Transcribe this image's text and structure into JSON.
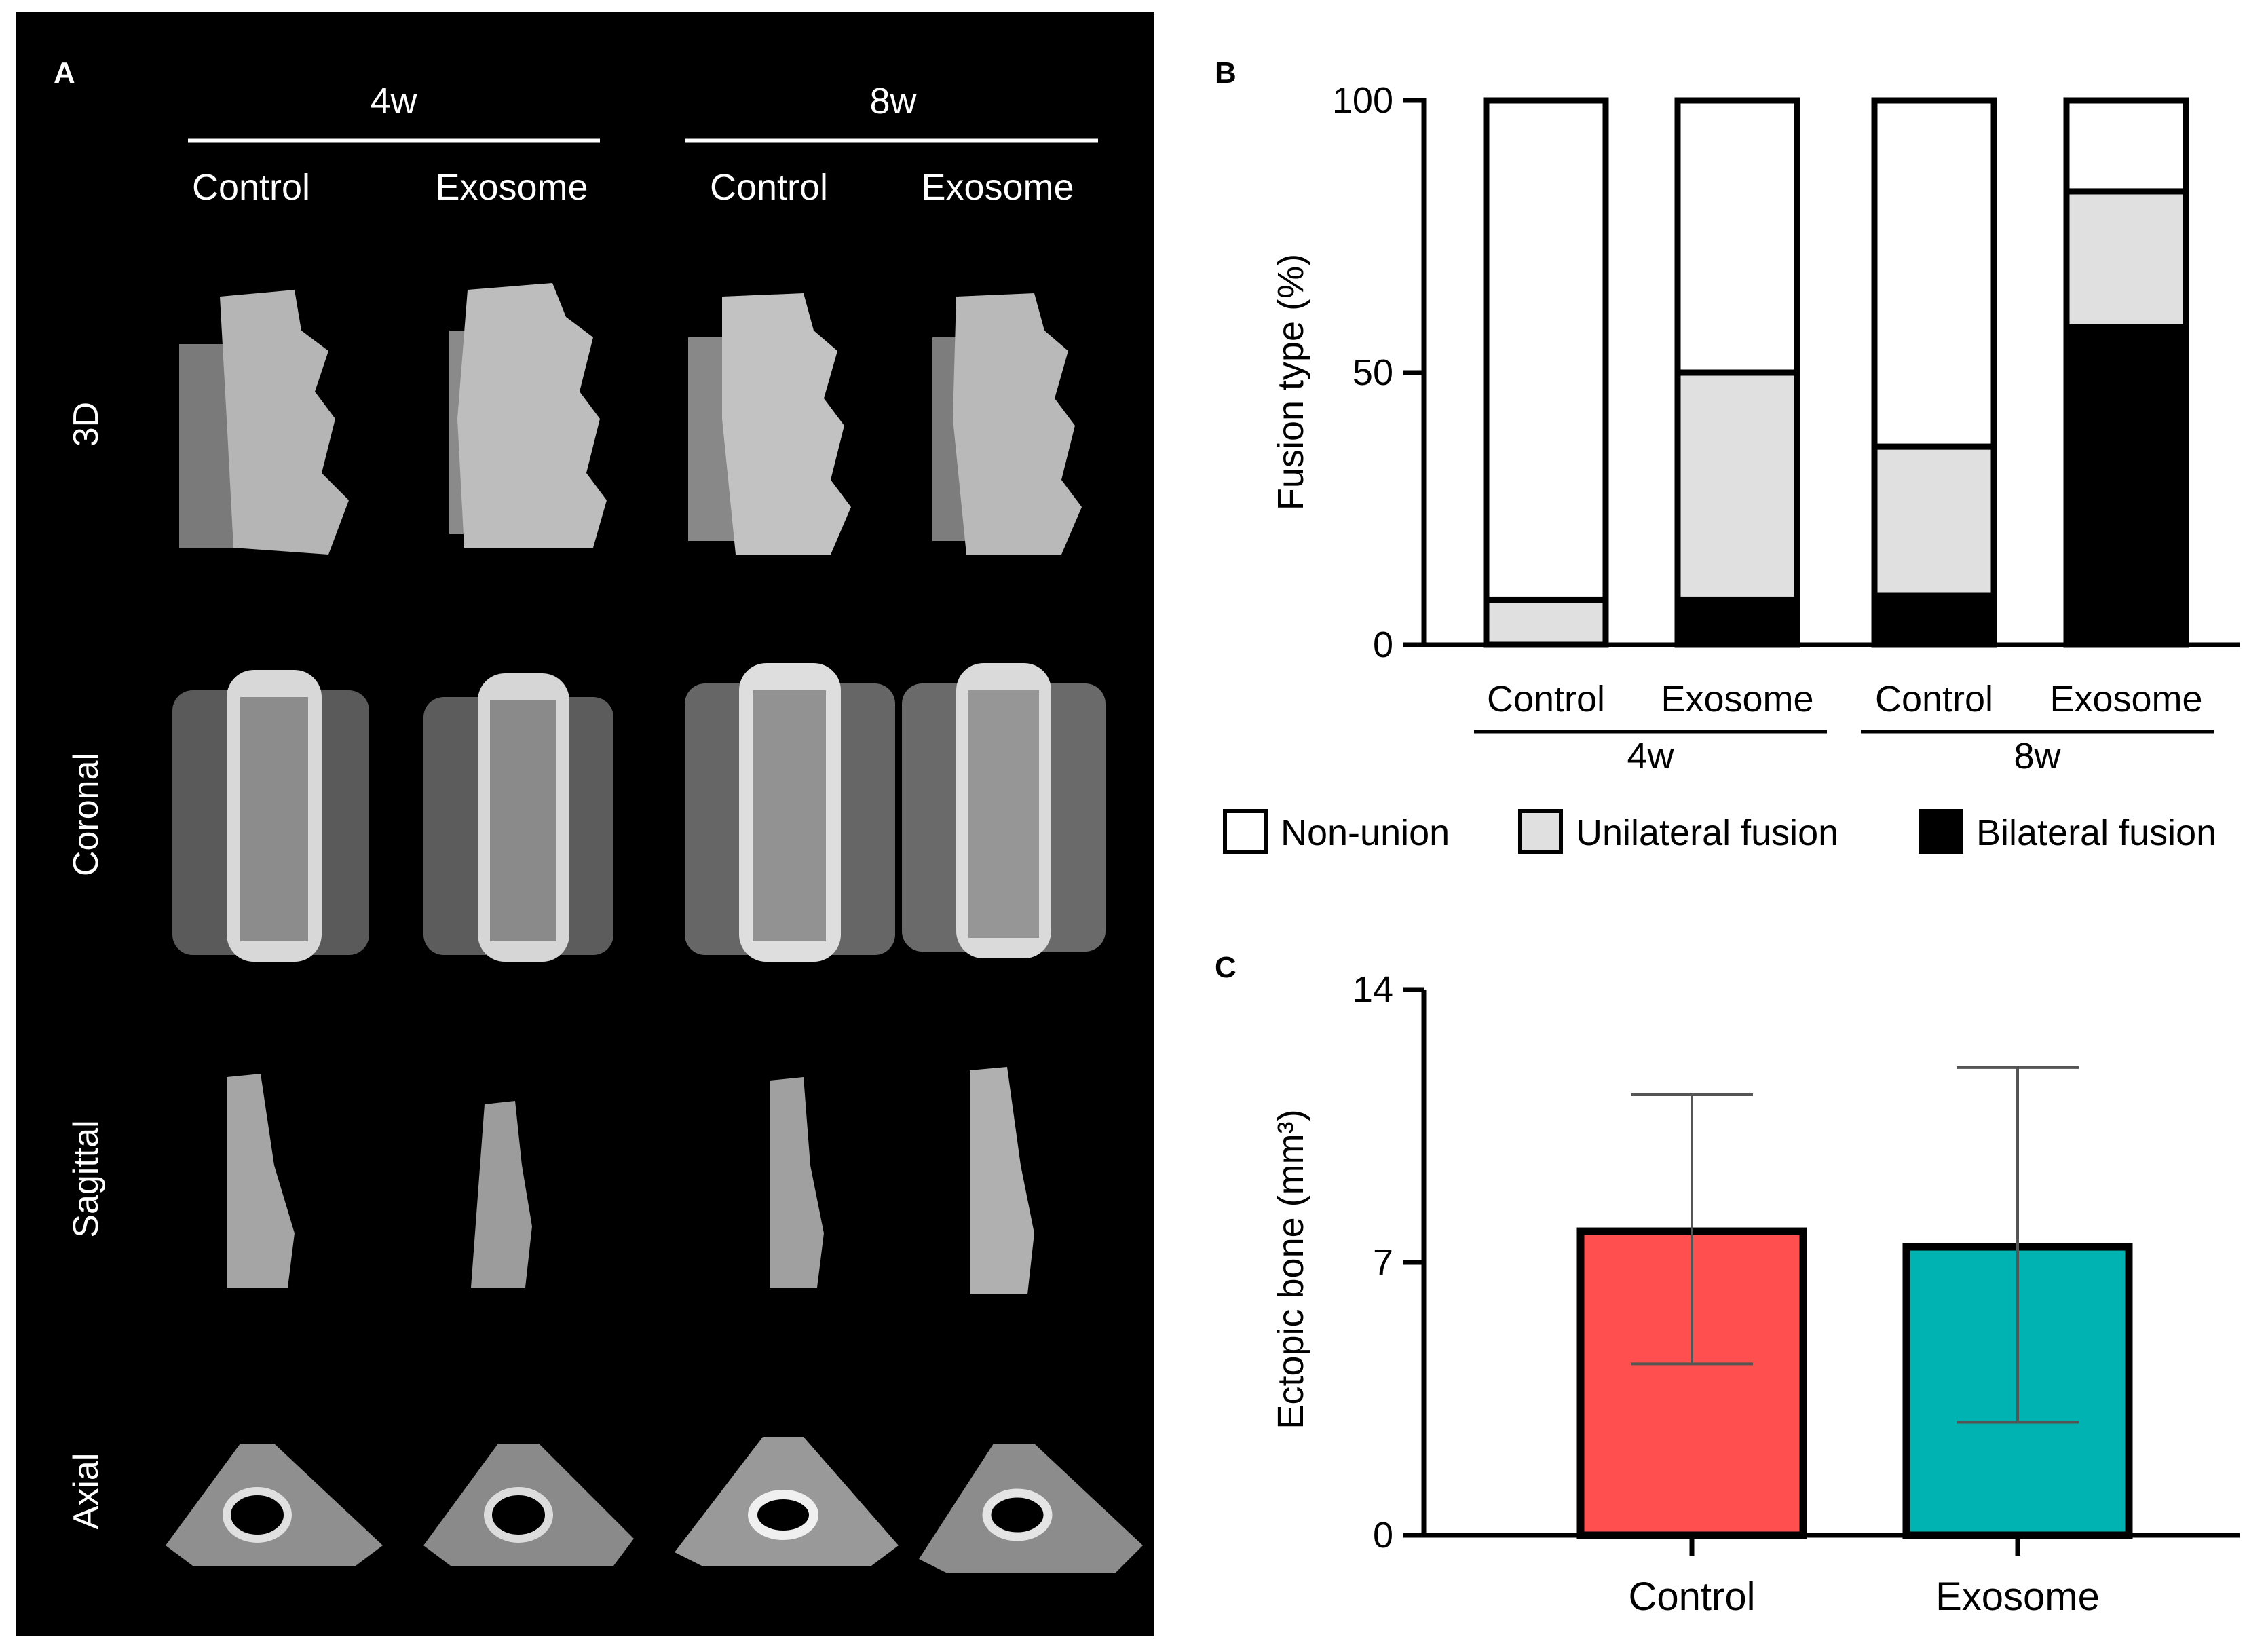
{
  "panel_a": {
    "label": "A",
    "timepoints": [
      "4w",
      "8w"
    ],
    "columns": [
      "Control",
      "Exosome",
      "Control",
      "Exosome"
    ],
    "rows": [
      "3D",
      "Coronal",
      "Sagittal",
      "Axial"
    ]
  },
  "chart_data": [
    {
      "panel": "B",
      "type": "bar",
      "stacked": true,
      "categories": [
        "Control",
        "Exosome",
        "Control",
        "Exosome"
      ],
      "groups": [
        {
          "label": "4w",
          "categories": [
            0,
            1
          ]
        },
        {
          "label": "8w",
          "categories": [
            2,
            3
          ]
        }
      ],
      "series": [
        {
          "name": "Bilateral fusion",
          "color": "#000000",
          "values": [
            0,
            8.3,
            9.1,
            58.3
          ]
        },
        {
          "name": "Unilateral fusion",
          "color": "#e0e0e0",
          "values": [
            8.3,
            41.7,
            27.3,
            25.0
          ]
        },
        {
          "name": "Non-union",
          "color": "#ffffff",
          "values": [
            91.7,
            50.0,
            63.6,
            16.7
          ]
        }
      ],
      "ylabel": "Fusion type (%)",
      "xlabel": "",
      "ylim": [
        0,
        100
      ],
      "yticks": [
        "0",
        "50",
        "100"
      ],
      "legend_position": "bottom"
    },
    {
      "panel": "C",
      "type": "bar",
      "categories": [
        "Control",
        "Exosome"
      ],
      "values": [
        7.8,
        7.4
      ],
      "error_upper": [
        11.3,
        12.0
      ],
      "error_lower": [
        4.4,
        2.9
      ],
      "colors": [
        "#ff4f4f",
        "#00b3b3"
      ],
      "ylabel": "Ectopic bone (mm³)",
      "xlabel": "",
      "ylim": [
        0,
        14
      ],
      "yticks": [
        "0",
        "7",
        "14"
      ]
    }
  ]
}
